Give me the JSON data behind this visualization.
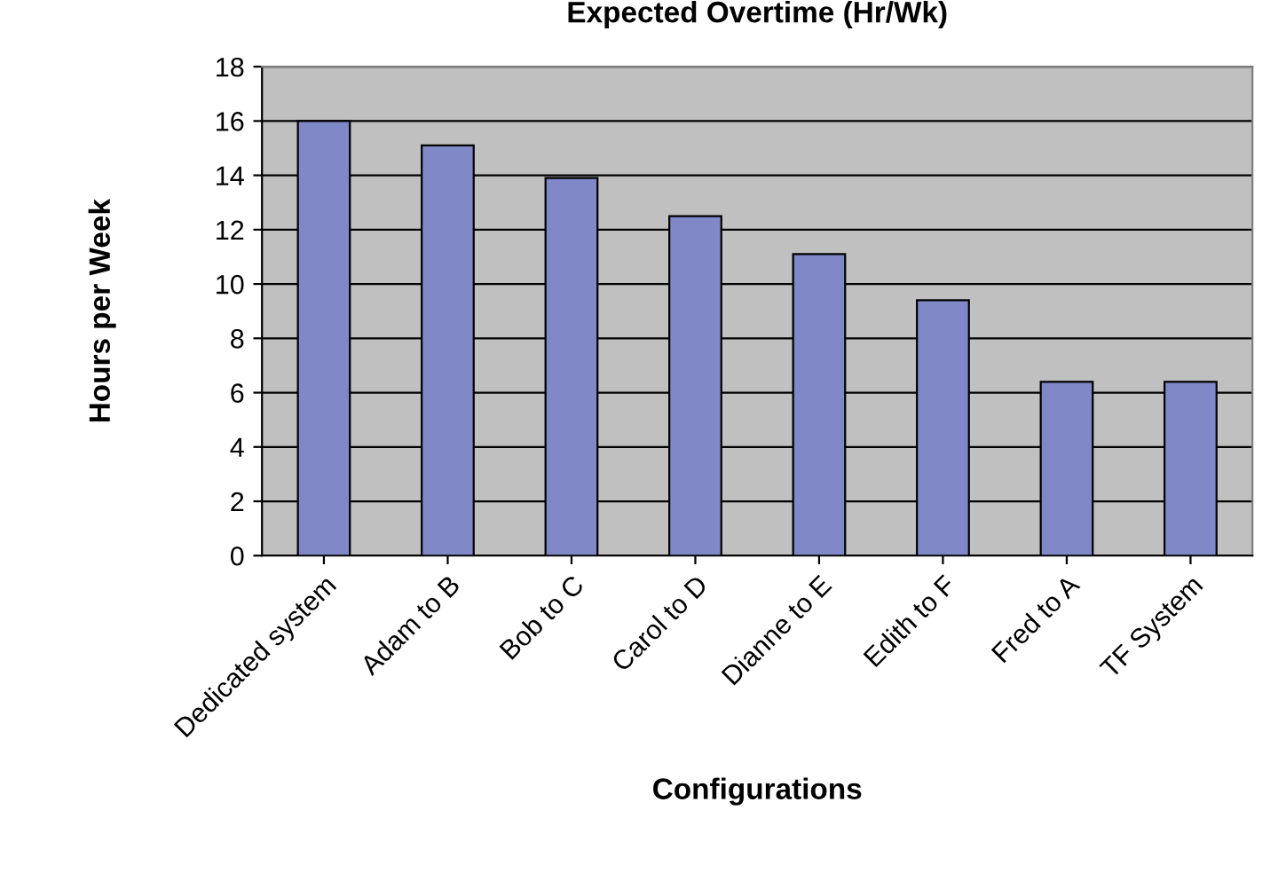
{
  "chart_data": {
    "type": "bar",
    "title": "Expected Overtime (Hr/Wk)",
    "xlabel": "Configurations",
    "ylabel": "Hours per Week",
    "categories": [
      "Dedicated system",
      "Adam to B",
      "Bob to C",
      "Carol to D",
      "Dianne to E",
      "Edith to F",
      "Fred to A",
      "TF System"
    ],
    "values": [
      16,
      15.1,
      13.9,
      12.5,
      11.1,
      9.4,
      6.4,
      6.4
    ],
    "color": "#8088c8",
    "ylim": [
      0,
      18
    ],
    "yticks": [
      0,
      2,
      4,
      6,
      8,
      10,
      12,
      14,
      16,
      18
    ],
    "grid": "y",
    "legend": false
  }
}
